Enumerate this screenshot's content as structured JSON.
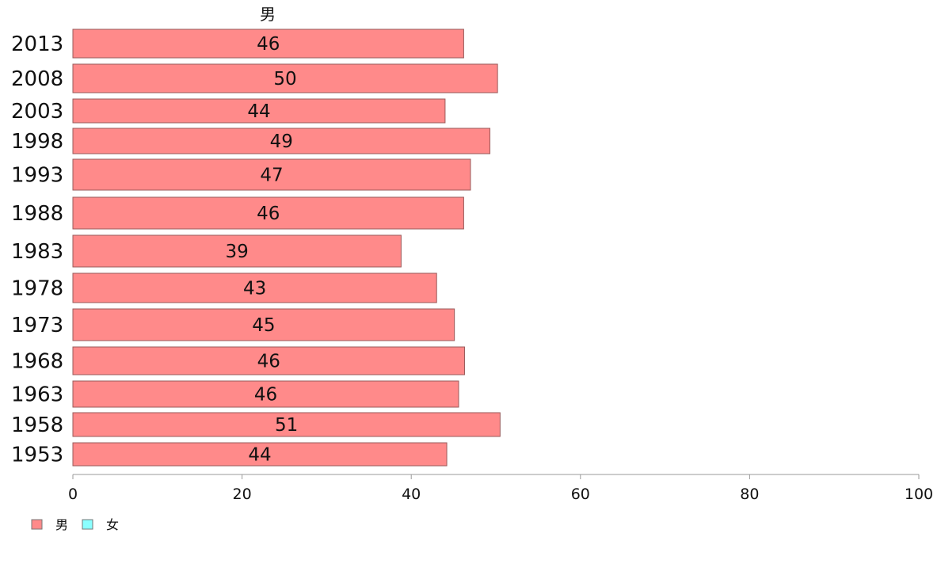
{
  "chart_data": {
    "type": "bar",
    "orientation": "horizontal",
    "title": "男",
    "categories": [
      "2013",
      "2008",
      "2003",
      "1998",
      "1993",
      "1988",
      "1983",
      "1978",
      "1973",
      "1968",
      "1963",
      "1958",
      "1953"
    ],
    "series": [
      {
        "name": "男",
        "color": "#ff8a8a",
        "values": [
          46.2,
          50.2,
          44.0,
          49.3,
          47.0,
          46.2,
          38.8,
          43.0,
          45.1,
          46.3,
          45.6,
          50.5,
          44.2
        ],
        "labels": [
          "46",
          "50",
          "44",
          "49",
          "47",
          "46",
          "39",
          "43",
          "45",
          "46",
          "46",
          "51",
          "44"
        ]
      }
    ],
    "xlim": [
      0,
      100
    ],
    "xticks": [
      0,
      20,
      40,
      60,
      80,
      100
    ],
    "xtick_labels": [
      "0",
      "20",
      "40",
      "60",
      "80",
      "100"
    ],
    "legend": {
      "position": "bottom-left",
      "entries": [
        {
          "label": "男",
          "color": "#ff8a8a"
        },
        {
          "label": "女",
          "color": "#8affff"
        }
      ]
    },
    "grid": false
  }
}
